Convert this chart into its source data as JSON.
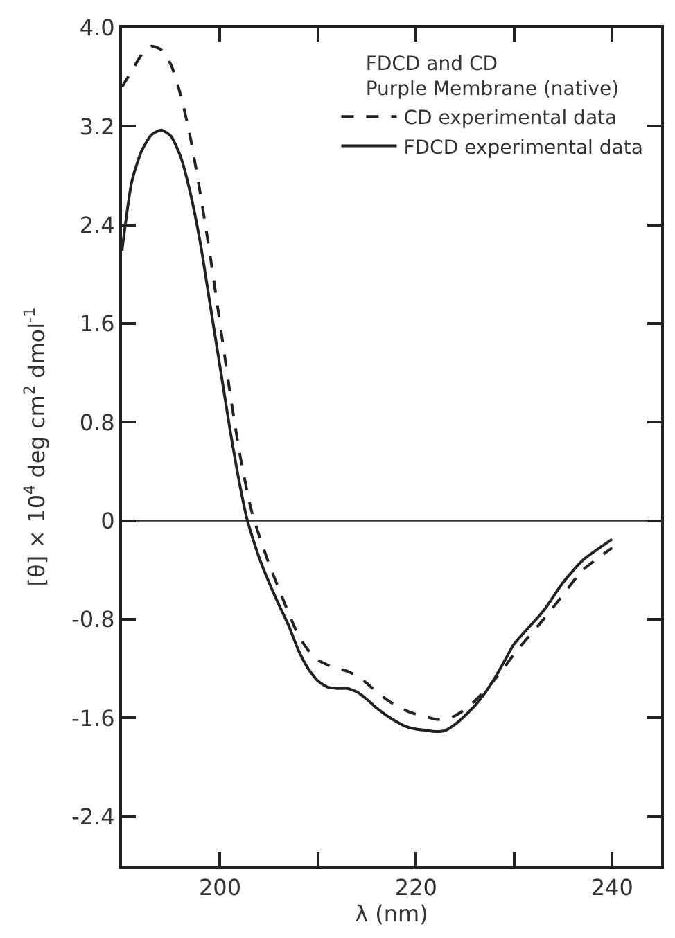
{
  "chart_data": {
    "type": "line",
    "xlabel": "λ (nm)",
    "ylabel": "[θ] × 10$^{4}$ deg cm$^{2}$ dmol$^{-1}$",
    "legend_title": "FDCD and CD\nPurple Membrane (native)",
    "legend": "top right",
    "xlim": [
      190,
      245
    ],
    "xticks": [
      200,
      {
        "value": 210,
        "label": null
      },
      220,
      {
        "value": 230,
        "label": null
      },
      240
    ],
    "ylim": [
      -2.8,
      4.0
    ],
    "yticks": [
      -2.4,
      -1.6,
      -0.8,
      0,
      0.8,
      1.6,
      2.4,
      3.2,
      {
        "value": 4.0,
        "label": "4.0"
      }
    ],
    "grid": false,
    "marker": "none",
    "ref_lines": [
      {
        "axis": "y",
        "value": 0,
        "color": "#333333",
        "line_style": "solid"
      }
    ],
    "series": [
      {
        "name": "CD experimental data",
        "color": "#222222",
        "line_style": "dashed",
        "x": [
          190,
          191,
          192,
          193,
          194,
          195,
          196,
          197,
          198,
          199,
          200,
          201,
          202,
          203,
          203.5,
          205,
          206,
          207,
          208,
          209,
          210,
          211,
          212,
          213,
          214,
          215,
          216,
          217,
          218,
          219,
          220,
          221,
          222,
          223,
          224,
          225,
          226,
          227,
          228,
          229,
          230,
          233,
          235,
          237,
          240
        ],
        "values": [
          3.52,
          3.65,
          3.78,
          3.85,
          3.82,
          3.7,
          3.45,
          3.1,
          2.65,
          2.15,
          1.6,
          1.05,
          0.55,
          0.15,
          0,
          -0.35,
          -0.55,
          -0.75,
          -0.93,
          -1.05,
          -1.13,
          -1.17,
          -1.2,
          -1.22,
          -1.26,
          -1.32,
          -1.39,
          -1.45,
          -1.5,
          -1.54,
          -1.57,
          -1.59,
          -1.61,
          -1.61,
          -1.58,
          -1.53,
          -1.46,
          -1.38,
          -1.29,
          -1.19,
          -1.08,
          -0.8,
          -0.6,
          -0.4,
          -0.22
        ]
      },
      {
        "name": "FDCD experimental data",
        "color": "#222222",
        "line_style": "solid",
        "x": [
          190,
          191,
          192,
          193,
          194,
          195,
          196,
          197,
          198,
          199,
          200,
          201,
          202,
          202.8,
          204,
          205,
          206,
          207,
          208,
          209,
          210,
          211,
          212,
          213,
          214,
          215,
          216,
          217,
          218,
          219,
          220,
          221,
          222,
          223,
          224,
          225,
          226,
          227,
          228,
          229,
          230,
          233,
          235,
          237,
          240
        ],
        "values": [
          2.19,
          2.75,
          3.0,
          3.13,
          3.17,
          3.12,
          2.95,
          2.65,
          2.25,
          1.75,
          1.25,
          0.75,
          0.3,
          0,
          -0.3,
          -0.5,
          -0.68,
          -0.85,
          -1.05,
          -1.2,
          -1.3,
          -1.35,
          -1.36,
          -1.36,
          -1.39,
          -1.45,
          -1.52,
          -1.58,
          -1.63,
          -1.67,
          -1.69,
          -1.7,
          -1.71,
          -1.7,
          -1.65,
          -1.58,
          -1.5,
          -1.4,
          -1.28,
          -1.14,
          -1.0,
          -0.73,
          -0.5,
          -0.32,
          -0.15
        ]
      }
    ]
  }
}
